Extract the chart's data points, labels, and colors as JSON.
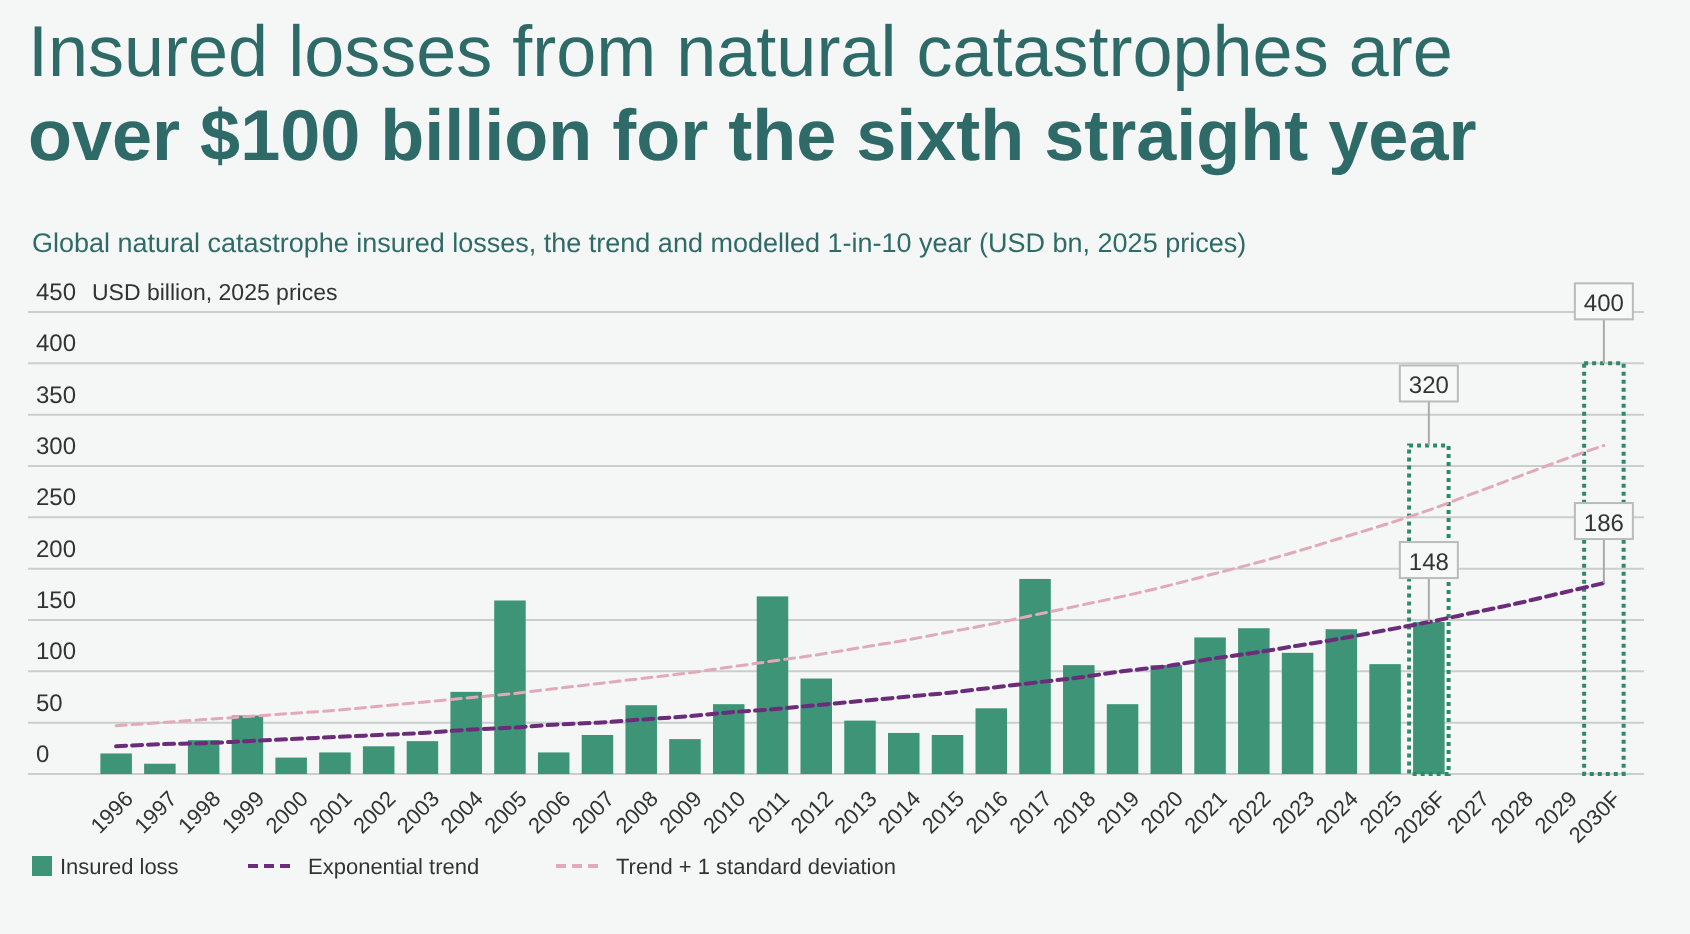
{
  "chart_data": {
    "type": "bar",
    "title": "Insured losses from natural catastrophes are over $100 billion for the sixth straight year",
    "subtitle": "Global natural catastrophe insured losses, the trend and modelled 1-in-10 year (USD bn, 2025 prices)",
    "ylabel": "USD billion, 2025 prices",
    "categories": [
      "1996",
      "1997",
      "1998",
      "1999",
      "2000",
      "2001",
      "2002",
      "2003",
      "2004",
      "2005",
      "2006",
      "2007",
      "2008",
      "2009",
      "2010",
      "2011",
      "2012",
      "2013",
      "2014",
      "2015",
      "2016",
      "2017",
      "2018",
      "2019",
      "2020",
      "2021",
      "2022",
      "2023",
      "2024",
      "2025",
      "2026F",
      "2027",
      "2028",
      "2029",
      "2030F"
    ],
    "series": [
      {
        "name": "Insured loss",
        "color": "#3d9477",
        "values": [
          20,
          10,
          33,
          57,
          16,
          21,
          27,
          32,
          80,
          169,
          21,
          38,
          67,
          34,
          68,
          173,
          93,
          52,
          40,
          38,
          64,
          190,
          106,
          68,
          106,
          133,
          142,
          118,
          141,
          107,
          148,
          null,
          null,
          null,
          null
        ],
        "value_labels": [
          null,
          null,
          null,
          null,
          null,
          null,
          null,
          null,
          null,
          null,
          null,
          null,
          null,
          null,
          null,
          null,
          null,
          null,
          null,
          null,
          null,
          null,
          null,
          null,
          null,
          null,
          null,
          null,
          null,
          null,
          "148",
          null,
          null,
          null,
          null
        ]
      },
      {
        "color": "#2e8b6a",
        "line_style": "dotted",
        "values": [
          null,
          null,
          null,
          null,
          null,
          null,
          null,
          null,
          null,
          null,
          null,
          null,
          null,
          null,
          null,
          null,
          null,
          null,
          null,
          null,
          null,
          null,
          null,
          null,
          null,
          null,
          null,
          null,
          null,
          null,
          320,
          null,
          null,
          null,
          400
        ],
        "value_labels": [
          null,
          null,
          null,
          null,
          null,
          null,
          null,
          null,
          null,
          null,
          null,
          null,
          null,
          null,
          null,
          null,
          null,
          null,
          null,
          null,
          null,
          null,
          null,
          null,
          null,
          null,
          null,
          null,
          null,
          null,
          "320",
          null,
          null,
          null,
          "400"
        ]
      },
      {
        "name": "Exponential trend",
        "type": "line",
        "color": "#6b2d7a",
        "line_style": "dashed",
        "values": [
          27,
          29,
          30,
          32,
          34,
          36,
          38,
          40,
          43,
          45,
          48,
          50,
          53,
          56,
          60,
          63,
          67,
          71,
          75,
          79,
          84,
          89,
          94,
          100,
          105,
          112,
          118,
          125,
          132,
          140,
          148,
          157,
          166,
          176,
          186
        ],
        "value_labels": [
          null,
          null,
          null,
          null,
          null,
          null,
          null,
          null,
          null,
          null,
          null,
          null,
          null,
          null,
          null,
          null,
          null,
          null,
          null,
          null,
          null,
          null,
          null,
          null,
          null,
          null,
          null,
          null,
          null,
          null,
          null,
          null,
          null,
          null,
          "186"
        ]
      },
      {
        "name": "Trend + 1 standard deviation",
        "type": "line",
        "color": "#e0aab8",
        "line_style": "dashed",
        "values": [
          47,
          50,
          53,
          56,
          59,
          62,
          66,
          70,
          74,
          78,
          83,
          88,
          93,
          98,
          104,
          110,
          116,
          123,
          130,
          138,
          146,
          155,
          164,
          173,
          183,
          194,
          205,
          217,
          230,
          243,
          257,
          273,
          289,
          305,
          320
        ]
      }
    ],
    "ylim": [
      0,
      450
    ],
    "yticks": [
      0,
      50,
      100,
      150,
      200,
      250,
      300,
      350,
      400,
      450
    ],
    "grid": "y",
    "legend": "bottom"
  }
}
